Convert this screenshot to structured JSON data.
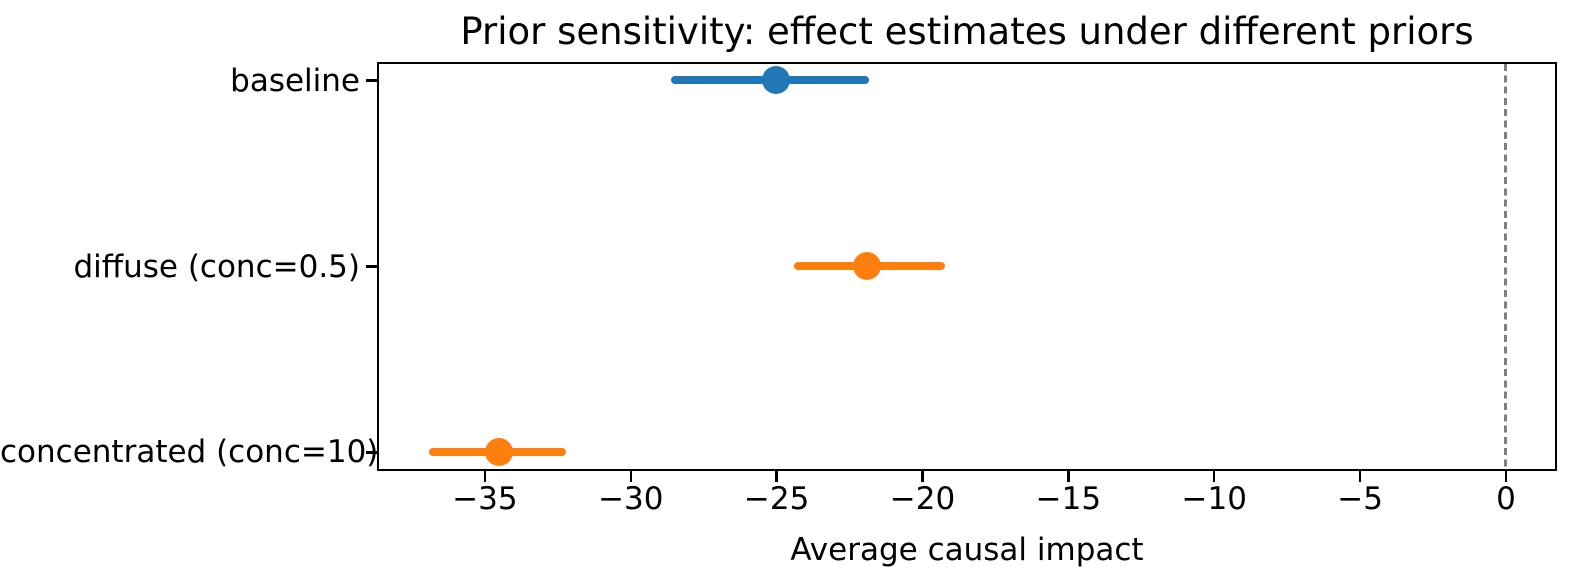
{
  "chart_data": {
    "type": "scatter",
    "subtype": "horizontal-point-estimates-with-error-bars",
    "title": "Prior sensitivity: effect estimates under different priors",
    "xlabel": "Average causal impact",
    "ylabel": "",
    "categories": [
      "baseline",
      "diffuse (conc=0.5)",
      "concentrated (conc=10)"
    ],
    "series": [
      {
        "name": "baseline",
        "estimate": -25.0,
        "ci_low": -28.6,
        "ci_high": -21.8,
        "color": "#1f77b4",
        "y": 2
      },
      {
        "name": "diffuse (conc=0.5)",
        "estimate": -21.9,
        "ci_low": -24.4,
        "ci_high": -19.2,
        "color": "#ff7f0e",
        "y": 1
      },
      {
        "name": "concentrated (conc=10)",
        "estimate": -34.5,
        "ci_low": -36.9,
        "ci_high": -32.2,
        "color": "#ff7f0e",
        "y": 0
      }
    ],
    "x_ticks": [
      -35,
      -30,
      -25,
      -20,
      -15,
      -10,
      -5,
      0
    ],
    "xlim": [
      -38.7,
      1.75
    ],
    "ylim": [
      -0.1,
      2.1
    ],
    "reference_line": {
      "x": 0,
      "style": "dashed",
      "color": "#7f7f7f"
    },
    "grid": "off",
    "legend": "none",
    "spine_color": "#000000",
    "background_color": "#ffffff"
  }
}
